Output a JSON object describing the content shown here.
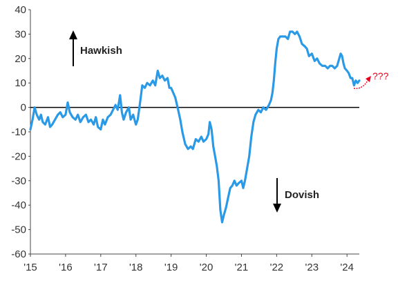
{
  "chart_data": {
    "type": "line",
    "title": "",
    "xlabel": "",
    "ylabel": "",
    "ylim": [
      -60,
      40
    ],
    "xlim": [
      2015.0,
      2024.35
    ],
    "yticks": [
      40,
      30,
      20,
      10,
      0,
      -10,
      -20,
      -30,
      -40,
      -50,
      -60
    ],
    "xticks": [
      {
        "label": "'15",
        "x": 2015
      },
      {
        "label": "'16",
        "x": 2016
      },
      {
        "label": "'17",
        "x": 2017
      },
      {
        "label": "'18",
        "x": 2018
      },
      {
        "label": "'19",
        "x": 2019
      },
      {
        "label": "'20",
        "x": 2020
      },
      {
        "label": "'21",
        "x": 2021
      },
      {
        "label": "'22",
        "x": 2022
      },
      {
        "label": "'23",
        "x": 2023
      },
      {
        "label": "'24",
        "x": 2024
      }
    ],
    "grid": false,
    "zero_line": true,
    "line_color": "#2b9ae6",
    "series": [
      {
        "values": [
          [
            2015.0,
            -9
          ],
          [
            2015.06,
            -5
          ],
          [
            2015.12,
            0
          ],
          [
            2015.18,
            -3
          ],
          [
            2015.25,
            -5
          ],
          [
            2015.3,
            -3
          ],
          [
            2015.35,
            -6
          ],
          [
            2015.42,
            -7
          ],
          [
            2015.5,
            -4
          ],
          [
            2015.56,
            -8
          ],
          [
            2015.62,
            -7
          ],
          [
            2015.7,
            -5
          ],
          [
            2015.78,
            -3
          ],
          [
            2015.85,
            -2
          ],
          [
            2015.92,
            -4
          ],
          [
            2016.0,
            -3
          ],
          [
            2016.06,
            2
          ],
          [
            2016.12,
            -2
          ],
          [
            2016.2,
            -4
          ],
          [
            2016.28,
            -5
          ],
          [
            2016.35,
            -3
          ],
          [
            2016.42,
            -6
          ],
          [
            2016.5,
            -4
          ],
          [
            2016.58,
            -3
          ],
          [
            2016.65,
            -6
          ],
          [
            2016.72,
            -5
          ],
          [
            2016.8,
            -7
          ],
          [
            2016.86,
            -4
          ],
          [
            2016.92,
            -8
          ],
          [
            2017.0,
            -9
          ],
          [
            2017.06,
            -5
          ],
          [
            2017.12,
            -7
          ],
          [
            2017.2,
            -4
          ],
          [
            2017.28,
            -3
          ],
          [
            2017.35,
            -1
          ],
          [
            2017.42,
            1
          ],
          [
            2017.48,
            -1
          ],
          [
            2017.55,
            5
          ],
          [
            2017.6,
            -2
          ],
          [
            2017.65,
            -5
          ],
          [
            2017.72,
            -2
          ],
          [
            2017.8,
            0
          ],
          [
            2017.85,
            -5
          ],
          [
            2017.92,
            -3
          ],
          [
            2018.0,
            -7
          ],
          [
            2018.05,
            -5
          ],
          [
            2018.1,
            0
          ],
          [
            2018.18,
            9
          ],
          [
            2018.25,
            8
          ],
          [
            2018.32,
            10
          ],
          [
            2018.4,
            9
          ],
          [
            2018.48,
            11
          ],
          [
            2018.55,
            9
          ],
          [
            2018.62,
            15
          ],
          [
            2018.68,
            12
          ],
          [
            2018.75,
            13
          ],
          [
            2018.82,
            11
          ],
          [
            2018.9,
            12
          ],
          [
            2018.95,
            8
          ],
          [
            2019.0,
            8
          ],
          [
            2019.06,
            6
          ],
          [
            2019.12,
            4
          ],
          [
            2019.2,
            -1
          ],
          [
            2019.26,
            -5
          ],
          [
            2019.32,
            -10
          ],
          [
            2019.4,
            -15
          ],
          [
            2019.48,
            -17
          ],
          [
            2019.56,
            -16
          ],
          [
            2019.62,
            -17
          ],
          [
            2019.7,
            -13
          ],
          [
            2019.78,
            -14
          ],
          [
            2019.86,
            -12
          ],
          [
            2019.92,
            -14
          ],
          [
            2020.0,
            -13
          ],
          [
            2020.06,
            -11
          ],
          [
            2020.1,
            -6
          ],
          [
            2020.15,
            -9
          ],
          [
            2020.2,
            -16
          ],
          [
            2020.25,
            -20
          ],
          [
            2020.3,
            -24
          ],
          [
            2020.35,
            -30
          ],
          [
            2020.4,
            -42
          ],
          [
            2020.45,
            -47
          ],
          [
            2020.5,
            -44
          ],
          [
            2020.56,
            -41
          ],
          [
            2020.62,
            -37
          ],
          [
            2020.68,
            -33
          ],
          [
            2020.74,
            -32
          ],
          [
            2020.8,
            -30
          ],
          [
            2020.86,
            -32
          ],
          [
            2020.92,
            -31
          ],
          [
            2021.0,
            -30
          ],
          [
            2021.05,
            -33
          ],
          [
            2021.1,
            -30
          ],
          [
            2021.16,
            -25
          ],
          [
            2021.22,
            -20
          ],
          [
            2021.28,
            -12
          ],
          [
            2021.34,
            -6
          ],
          [
            2021.4,
            -3
          ],
          [
            2021.48,
            -1
          ],
          [
            2021.55,
            -2
          ],
          [
            2021.62,
            0
          ],
          [
            2021.7,
            -1
          ],
          [
            2021.78,
            1
          ],
          [
            2021.84,
            3
          ],
          [
            2021.88,
            6
          ],
          [
            2021.92,
            11
          ],
          [
            2021.96,
            18
          ],
          [
            2022.0,
            24
          ],
          [
            2022.05,
            28
          ],
          [
            2022.1,
            29
          ],
          [
            2022.18,
            29
          ],
          [
            2022.25,
            29
          ],
          [
            2022.32,
            28
          ],
          [
            2022.38,
            31
          ],
          [
            2022.45,
            31
          ],
          [
            2022.52,
            30
          ],
          [
            2022.58,
            31
          ],
          [
            2022.65,
            29
          ],
          [
            2022.72,
            26
          ],
          [
            2022.8,
            25
          ],
          [
            2022.86,
            24
          ],
          [
            2022.92,
            21
          ],
          [
            2023.0,
            22
          ],
          [
            2023.08,
            19
          ],
          [
            2023.15,
            20
          ],
          [
            2023.22,
            18
          ],
          [
            2023.3,
            17
          ],
          [
            2023.38,
            17
          ],
          [
            2023.45,
            16
          ],
          [
            2023.52,
            17
          ],
          [
            2023.58,
            17
          ],
          [
            2023.65,
            16
          ],
          [
            2023.72,
            17
          ],
          [
            2023.78,
            20
          ],
          [
            2023.82,
            22
          ],
          [
            2023.86,
            21
          ],
          [
            2023.9,
            18
          ],
          [
            2023.94,
            16
          ],
          [
            2024.0,
            15
          ],
          [
            2024.05,
            14
          ],
          [
            2024.1,
            12
          ],
          [
            2024.15,
            12
          ],
          [
            2024.2,
            9
          ],
          [
            2024.25,
            11
          ],
          [
            2024.3,
            10
          ],
          [
            2024.35,
            11
          ]
        ]
      }
    ],
    "annotations": {
      "hawkish": "Hawkish",
      "dovish": "Dovish",
      "question": "???"
    }
  }
}
